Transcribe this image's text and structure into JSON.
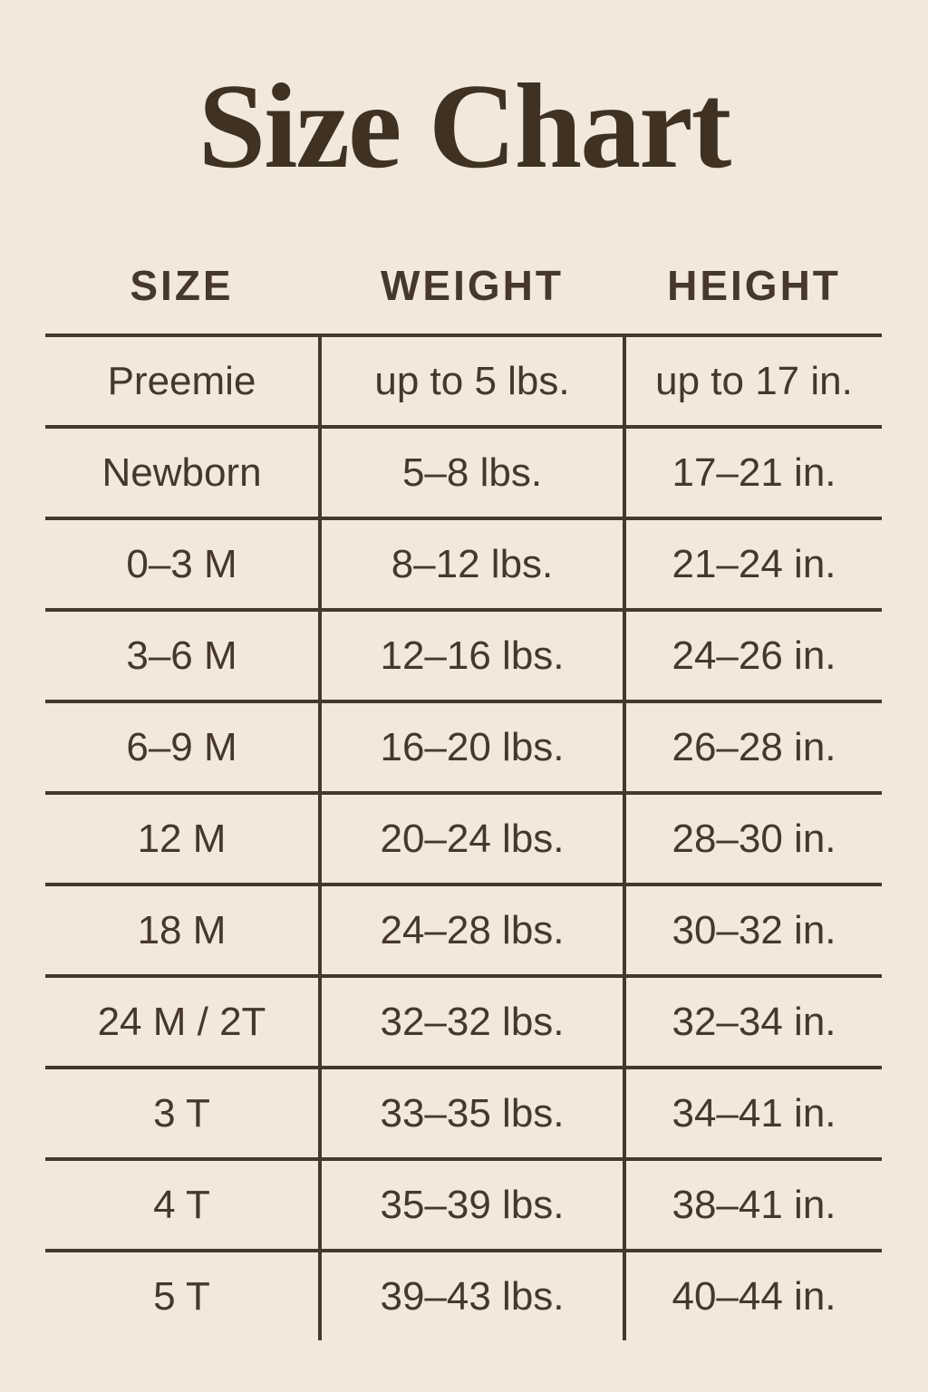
{
  "title": "Size Chart",
  "colors": {
    "background": "#f2e9dc",
    "text": "#46382a",
    "line": "#46382a",
    "title": "#3f3222"
  },
  "chart_data": {
    "type": "table",
    "title": "Size Chart",
    "columns": [
      "SIZE",
      "WEIGHT",
      "HEIGHT"
    ],
    "rows": [
      {
        "size": "Preemie",
        "weight": "up to 5 lbs.",
        "height": "up to 17 in."
      },
      {
        "size": "Newborn",
        "weight": "5–8 lbs.",
        "height": "17–21 in."
      },
      {
        "size": "0–3 M",
        "weight": "8–12 lbs.",
        "height": "21–24 in."
      },
      {
        "size": "3–6 M",
        "weight": "12–16 lbs.",
        "height": "24–26 in."
      },
      {
        "size": "6–9 M",
        "weight": "16–20 lbs.",
        "height": "26–28 in."
      },
      {
        "size": "12 M",
        "weight": "20–24 lbs.",
        "height": "28–30 in."
      },
      {
        "size": "18 M",
        "weight": "24–28 lbs.",
        "height": "30–32 in."
      },
      {
        "size": "24 M / 2T",
        "weight": "32–32 lbs.",
        "height": "32–34 in."
      },
      {
        "size": "3 T",
        "weight": "33–35 lbs.",
        "height": "34–41 in."
      },
      {
        "size": "4 T",
        "weight": "35–39 lbs.",
        "height": "38–41 in."
      },
      {
        "size": "5 T",
        "weight": "39–43 lbs.",
        "height": "40–44 in."
      }
    ]
  }
}
